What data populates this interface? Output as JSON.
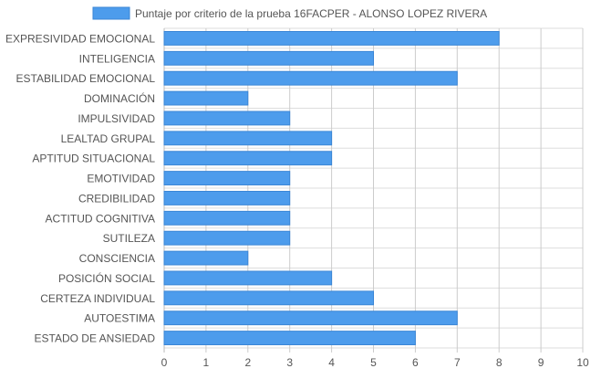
{
  "chart_data": {
    "type": "bar",
    "orientation": "horizontal",
    "categories": [
      "EXPRESIVIDAD EMOCIONAL",
      "INTELIGENCIA",
      "ESTABILIDAD EMOCIONAL",
      "DOMINACIÓN",
      "IMPULSIVIDAD",
      "LEALTAD GRUPAL",
      "APTITUD SITUACIONAL",
      "EMOTIVIDAD",
      "CREDIBILIDAD",
      "ACTITUD COGNITIVA",
      "SUTILEZA",
      "CONSCIENCIA",
      "POSICIÓN SOCIAL",
      "CERTEZA INDIVIDUAL",
      "AUTOESTIMA",
      "ESTADO DE ANSIEDAD"
    ],
    "series": [
      {
        "name": "Puntaje por criterio de la prueba 16FACPER - ALONSO LOPEZ RIVERA",
        "values": [
          8,
          5,
          7,
          2,
          3,
          4,
          4,
          3,
          3,
          3,
          3,
          2,
          4,
          5,
          7,
          6
        ]
      }
    ],
    "xlim": [
      0,
      10
    ],
    "xticks": [
      "0",
      "1",
      "2",
      "3",
      "4",
      "5",
      "6",
      "7",
      "8",
      "9",
      "10"
    ],
    "grid": true,
    "legend": "top-center",
    "colors": {
      "bar_fill": "#4d9cec",
      "bar_stroke": "#3a86d6",
      "grid": "#dddddd",
      "axis": "#bbbbbb",
      "text": "#555555"
    }
  }
}
